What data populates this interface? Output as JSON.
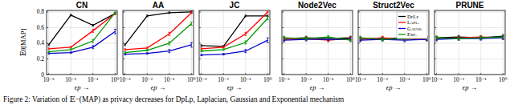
{
  "chart_data": [
    {
      "type": "line",
      "title": "CN",
      "y_label": "𝔼θ[MAP]",
      "x_label": "ϵp →",
      "log": "x",
      "grid": true,
      "tick_labels": true,
      "x": [
        0.001,
        0.01,
        0.1,
        1
      ],
      "xlim": [
        0.0008,
        1.25
      ],
      "xticks": [
        {
          "value": 0.001,
          "label": "10⁻³"
        },
        {
          "value": 0.01,
          "label": "10⁻²"
        },
        {
          "value": 0.1,
          "label": "10⁻¹"
        },
        {
          "value": 1,
          "label": "10⁰"
        }
      ],
      "ylim": [
        0,
        0.82
      ],
      "yticks": [
        0,
        0.2,
        0.4,
        0.6,
        0.8
      ],
      "series": [
        {
          "name": "DpLp",
          "color": "#000000",
          "values": [
            0.38,
            0.76,
            0.63,
            0.78
          ],
          "errors": [
            0.01,
            0.01,
            0.01,
            0.01
          ]
        },
        {
          "name": "Lapl.",
          "color": "#ff0000",
          "values": [
            0.33,
            0.35,
            0.56,
            0.78
          ],
          "errors": [
            0.01,
            0.01,
            0.02,
            0.01
          ]
        },
        {
          "name": "Gauss.",
          "color": "#0000cc",
          "values": [
            0.27,
            0.28,
            0.35,
            0.55
          ],
          "errors": [
            0.01,
            0.01,
            0.02,
            0.03
          ]
        },
        {
          "name": "Exp.",
          "color": "#009900",
          "values": [
            0.29,
            0.32,
            0.43,
            0.79
          ],
          "errors": [
            0.01,
            0.01,
            0.02,
            0.01
          ]
        }
      ]
    },
    {
      "type": "line",
      "title": "AA",
      "x_label": "ϵp →",
      "log": "x",
      "grid": true,
      "tick_labels": "x",
      "x": [
        0.001,
        0.01,
        0.1,
        1
      ],
      "xlim": [
        0.0008,
        1.25
      ],
      "xticks": [
        {
          "value": 0.001,
          "label": "10⁻³"
        },
        {
          "value": 0.01,
          "label": "10⁻²"
        },
        {
          "value": 0.1,
          "label": "10⁻¹"
        },
        {
          "value": 1,
          "label": "10⁰"
        }
      ],
      "ylim": [
        0,
        0.82
      ],
      "yticks": [
        0,
        0.2,
        0.4,
        0.6,
        0.8
      ],
      "series": [
        {
          "name": "DpLp",
          "color": "#000000",
          "values": [
            0.38,
            0.75,
            0.79,
            0.8
          ],
          "errors": [
            0.01,
            0.01,
            0.01,
            0.01
          ]
        },
        {
          "name": "Lapl.",
          "color": "#ff0000",
          "values": [
            0.32,
            0.34,
            0.52,
            0.79
          ],
          "errors": [
            0.01,
            0.01,
            0.02,
            0.01
          ]
        },
        {
          "name": "Gauss.",
          "color": "#0000cc",
          "values": [
            0.26,
            0.27,
            0.3,
            0.38
          ],
          "errors": [
            0.01,
            0.01,
            0.02,
            0.03
          ]
        },
        {
          "name": "Exp.",
          "color": "#009900",
          "values": [
            0.28,
            0.31,
            0.4,
            0.65
          ],
          "errors": [
            0.01,
            0.01,
            0.02,
            0.02
          ]
        }
      ]
    },
    {
      "type": "line",
      "title": "JC",
      "x_label": "ϵp →",
      "log": "x",
      "grid": true,
      "tick_labels": "x",
      "x": [
        0.001,
        0.01,
        0.1,
        1
      ],
      "xlim": [
        0.0008,
        1.25
      ],
      "xticks": [
        {
          "value": 0.001,
          "label": "10⁻³"
        },
        {
          "value": 0.01,
          "label": "10⁻²"
        },
        {
          "value": 0.1,
          "label": "10⁻¹"
        },
        {
          "value": 1,
          "label": "10⁰"
        }
      ],
      "ylim": [
        0,
        0.82
      ],
      "yticks": [
        0,
        0.2,
        0.4,
        0.6,
        0.8
      ],
      "series": [
        {
          "name": "DpLp",
          "color": "#000000",
          "values": [
            0.37,
            0.36,
            0.75,
            0.75
          ],
          "errors": [
            0.01,
            0.01,
            0.01,
            0.01
          ]
        },
        {
          "name": "Lapl.",
          "color": "#ff0000",
          "values": [
            0.33,
            0.35,
            0.52,
            0.8
          ],
          "errors": [
            0.01,
            0.01,
            0.02,
            0.01
          ]
        },
        {
          "name": "Gauss.",
          "color": "#0000cc",
          "values": [
            0.25,
            0.26,
            0.3,
            0.44
          ],
          "errors": [
            0.01,
            0.01,
            0.02,
            0.03
          ]
        },
        {
          "name": "Exp.",
          "color": "#009900",
          "values": [
            0.3,
            0.32,
            0.41,
            0.72
          ],
          "errors": [
            0.01,
            0.01,
            0.02,
            0.02
          ]
        }
      ]
    },
    {
      "type": "line",
      "title": "Node2Vec",
      "x_label": "ϵp →",
      "log": "x",
      "grid": true,
      "tick_labels": "x",
      "x": [
        0.001,
        0.01,
        0.1,
        1
      ],
      "xlim": [
        0.0008,
        1.25
      ],
      "xticks": [
        {
          "value": 0.001,
          "label": "10⁻³"
        },
        {
          "value": 0.01,
          "label": "10⁻²"
        },
        {
          "value": 0.1,
          "label": "10⁻¹"
        },
        {
          "value": 1,
          "label": "10⁰"
        }
      ],
      "ylim": [
        0,
        0.82
      ],
      "yticks": [
        0,
        0.2,
        0.4,
        0.6,
        0.8
      ],
      "series": [
        {
          "name": "DpLp",
          "color": "#000000",
          "values": [
            0.46,
            0.47,
            0.46,
            0.47
          ],
          "errors": [
            0.02,
            0.02,
            0.02,
            0.02
          ]
        },
        {
          "name": "Lapl.",
          "color": "#ff0000",
          "values": [
            0.45,
            0.46,
            0.44,
            0.46
          ],
          "errors": [
            0.02,
            0.02,
            0.02,
            0.02
          ]
        },
        {
          "name": "Gauss.",
          "color": "#0000cc",
          "values": [
            0.44,
            0.45,
            0.45,
            0.45
          ],
          "errors": [
            0.02,
            0.02,
            0.02,
            0.02
          ]
        },
        {
          "name": "Exp.",
          "color": "#009900",
          "values": [
            0.47,
            0.46,
            0.48,
            0.44
          ],
          "errors": [
            0.02,
            0.02,
            0.02,
            0.02
          ]
        }
      ]
    },
    {
      "type": "line",
      "title": "Struct2Vec",
      "x_label": "ϵp →",
      "log": "x",
      "grid": true,
      "tick_labels": "x",
      "legend": "upper right",
      "x": [
        0.001,
        0.01,
        0.1,
        1
      ],
      "xlim": [
        0.0008,
        1.25
      ],
      "xticks": [
        {
          "value": 0.001,
          "label": "10⁻³"
        },
        {
          "value": 0.01,
          "label": "10⁻²"
        },
        {
          "value": 0.1,
          "label": "10⁻¹"
        },
        {
          "value": 1,
          "label": "10⁰"
        }
      ],
      "ylim": [
        0,
        0.82
      ],
      "yticks": [
        0,
        0.2,
        0.4,
        0.6,
        0.8
      ],
      "series": [
        {
          "name": "DpLp",
          "color": "#000000",
          "values": [
            0.46,
            0.46,
            0.47,
            0.46
          ],
          "errors": [
            0.02,
            0.02,
            0.02,
            0.02
          ]
        },
        {
          "name": "Lapl.",
          "color": "#ff0000",
          "values": [
            0.45,
            0.47,
            0.45,
            0.46
          ],
          "errors": [
            0.02,
            0.02,
            0.02,
            0.02
          ]
        },
        {
          "name": "Gauss.",
          "color": "#0000cc",
          "values": [
            0.44,
            0.45,
            0.44,
            0.45
          ],
          "errors": [
            0.02,
            0.02,
            0.02,
            0.02
          ]
        },
        {
          "name": "Exp.",
          "color": "#009900",
          "values": [
            0.47,
            0.45,
            0.46,
            0.47
          ],
          "errors": [
            0.02,
            0.02,
            0.02,
            0.02
          ]
        }
      ]
    },
    {
      "type": "line",
      "title": "PRUNE",
      "x_label": "ϵp →",
      "log": "x",
      "grid": true,
      "tick_labels": "x",
      "x": [
        0.001,
        0.01,
        0.1,
        1
      ],
      "xlim": [
        0.0008,
        1.25
      ],
      "xticks": [
        {
          "value": 0.001,
          "label": "10⁻³"
        },
        {
          "value": 0.01,
          "label": "10⁻²"
        },
        {
          "value": 0.1,
          "label": "10⁻¹"
        },
        {
          "value": 1,
          "label": "10⁰"
        }
      ],
      "ylim": [
        0,
        0.82
      ],
      "yticks": [
        0,
        0.2,
        0.4,
        0.6,
        0.8
      ],
      "series": [
        {
          "name": "DpLp",
          "color": "#000000",
          "values": [
            0.47,
            0.48,
            0.47,
            0.49
          ],
          "errors": [
            0.02,
            0.02,
            0.02,
            0.02
          ]
        },
        {
          "name": "Lapl.",
          "color": "#ff0000",
          "values": [
            0.46,
            0.47,
            0.48,
            0.47
          ],
          "errors": [
            0.02,
            0.02,
            0.02,
            0.02
          ]
        },
        {
          "name": "Gauss.",
          "color": "#0000cc",
          "values": [
            0.45,
            0.46,
            0.46,
            0.47
          ],
          "errors": [
            0.02,
            0.02,
            0.02,
            0.02
          ]
        },
        {
          "name": "Exp.",
          "color": "#009900",
          "values": [
            0.47,
            0.46,
            0.47,
            0.48
          ],
          "errors": [
            0.02,
            0.02,
            0.02,
            0.02
          ]
        }
      ]
    }
  ],
  "caption": "Figure 2: Variation of 𝔼−(MAP) as privacy decreases for DpLp, Laplacian, Gaussian and Exponential mechanism"
}
